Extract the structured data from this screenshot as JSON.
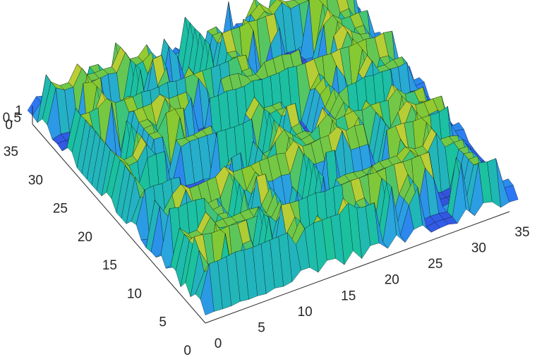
{
  "chart_data": {
    "type": "surface",
    "title": "",
    "xlabel": "",
    "ylabel": "",
    "zlabel": "",
    "x_range": [
      0,
      35
    ],
    "y_range": [
      0,
      35
    ],
    "z_range": [
      0,
      1
    ],
    "x_ticks": [
      "0",
      "5",
      "10",
      "15",
      "20",
      "25",
      "30",
      "35"
    ],
    "y_ticks": [
      "0",
      "5",
      "10",
      "15",
      "20",
      "25",
      "30",
      "35"
    ],
    "z_ticks": [
      "0",
      "0.5",
      "1"
    ],
    "colormap": [
      "#3e26a8",
      "#2d6dfa",
      "#2ba4e0",
      "#1bc29d",
      "#88c930",
      "#f6d33b",
      "#f9fb15"
    ],
    "edge_color": "#000000",
    "grid": false,
    "pattern": "labyrinth"
  }
}
